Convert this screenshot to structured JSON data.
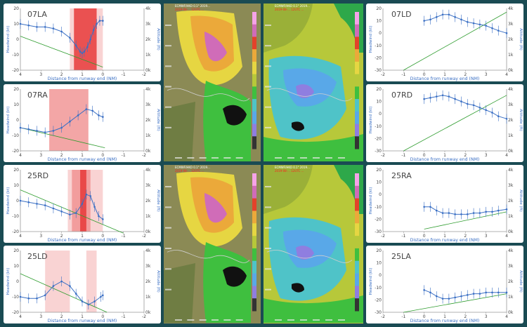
{
  "colors": {
    "background": "#1a4b53",
    "headwind": "#3a6fc4",
    "altitude": "#2e9c2e",
    "shade_light": "#f8c8c8",
    "shade_mid": "#f09090",
    "shade_dark": "#e83a3a",
    "title": "#444444"
  },
  "axis_labels": {
    "y_left": "Headwind (kt)",
    "y_right": "Altitude (ft)",
    "x": "Distance from runway end (NM)"
  },
  "maps": [
    {
      "label_top": "ECMWF/HKO  0.1°  2019...",
      "label_red": "2019-08-... 12UTC ...",
      "style": "warm"
    },
    {
      "label_top": "ECMWF/HKO  0.1°  2019...",
      "label_red": "2019-08-... 12UTC ...",
      "style": "cool"
    },
    {
      "label_top": "ECMWF/HKO  0.1°  2019...",
      "label_red": "2019-08-... 12UTC ...",
      "style": "warm"
    },
    {
      "label_top": "ECMWF/HKO  0.1°  2019...",
      "label_red": "2019-08-... 12UTC ...",
      "style": "cool"
    }
  ],
  "chart_data": [
    {
      "type": "line",
      "title": "07LA",
      "orientation": "reversed",
      "xlim": [
        4,
        -2
      ],
      "xticks": [
        "4",
        "3",
        "2",
        "1",
        "0",
        "-1",
        "-2"
      ],
      "ylim": [
        -20,
        20
      ],
      "yticks": [
        "20",
        "10",
        "0",
        "-10",
        "-20"
      ],
      "y2ticks": [
        "4k",
        "3k",
        "2k",
        "1k",
        "0k"
      ],
      "headwind": {
        "x": [
          4,
          3.6,
          3.2,
          2.8,
          2.4,
          2,
          1.6,
          1.3,
          1.1,
          1.0,
          0.9,
          0.75,
          0.6,
          0.45,
          0.3,
          0.15,
          0
        ],
        "y": [
          10,
          9,
          8,
          8,
          7,
          5,
          1,
          -4,
          -8,
          -9,
          -8,
          -5,
          0,
          6,
          10,
          12,
          12
        ]
      },
      "altitude": {
        "x": [
          4,
          0
        ],
        "y": [
          2,
          -18
        ]
      },
      "shading": [
        {
          "from": 1.6,
          "to": 0,
          "level": "light"
        },
        {
          "from": 1.4,
          "to": 0.3,
          "level": "dark"
        }
      ]
    },
    {
      "type": "line",
      "title": "07RA",
      "orientation": "reversed",
      "xlim": [
        4,
        -2
      ],
      "xticks": [
        "4",
        "3",
        "2",
        "1",
        "0",
        "-1",
        "-2"
      ],
      "ylim": [
        -20,
        20
      ],
      "yticks": [
        "20",
        "10",
        "0",
        "-10",
        "-20"
      ],
      "y2ticks": [
        "4k",
        "3k",
        "2k",
        "1k",
        "0k"
      ],
      "headwind": {
        "x": [
          4,
          3.6,
          3.2,
          2.8,
          2.4,
          2,
          1.6,
          1.2,
          0.8,
          0.5,
          0.2,
          0
        ],
        "y": [
          -5,
          -6,
          -7,
          -8,
          -7,
          -5,
          -1,
          3,
          7,
          6,
          3,
          2
        ]
      },
      "altitude": {
        "x": [
          4,
          -0.1
        ],
        "y": [
          -5,
          -18
        ]
      },
      "shading": [
        {
          "from": 2.6,
          "to": 0.7,
          "level": "mid"
        }
      ]
    },
    {
      "type": "line",
      "title": "25RD",
      "orientation": "reversed",
      "xlim": [
        4,
        -2
      ],
      "xticks": [
        "4",
        "3",
        "2",
        "1",
        "0",
        "-1",
        "-2"
      ],
      "ylim": [
        -20,
        20
      ],
      "yticks": [
        "20",
        "10",
        "0",
        "-10",
        "-20"
      ],
      "y2ticks": [
        "4k",
        "3k",
        "2k",
        "1k",
        "0k"
      ],
      "headwind": {
        "x": [
          4,
          3.6,
          3.2,
          2.8,
          2.4,
          2,
          1.6,
          1.3,
          1.0,
          0.8,
          0.6,
          0.4,
          0.2,
          0
        ],
        "y": [
          0,
          -1,
          -2,
          -3,
          -5,
          -7,
          -9,
          -8,
          -2,
          4,
          3,
          -4,
          -10,
          -12
        ]
      },
      "altitude": {
        "x": [
          4,
          -1
        ],
        "y": [
          7,
          -21
        ]
      },
      "shading": [
        {
          "from": 1.7,
          "to": 0,
          "level": "light"
        },
        {
          "from": 1.5,
          "to": 0.6,
          "level": "mid"
        },
        {
          "from": 1.1,
          "to": 0.8,
          "level": "dark"
        }
      ]
    },
    {
      "type": "line",
      "title": "25LD",
      "orientation": "reversed",
      "xlim": [
        4,
        -2
      ],
      "xticks": [
        "4",
        "3",
        "2",
        "1",
        "0",
        "-1",
        "-2"
      ],
      "ylim": [
        -20,
        20
      ],
      "yticks": [
        "20",
        "10",
        "0",
        "-10",
        "-20"
      ],
      "y2ticks": [
        "4k",
        "3k",
        "2k",
        "1k",
        "0k"
      ],
      "headwind": {
        "x": [
          4,
          3.6,
          3.2,
          2.8,
          2.4,
          2,
          1.6,
          1.3,
          1.0,
          0.7,
          0.4,
          0.1,
          0
        ],
        "y": [
          -10,
          -11,
          -11,
          -9,
          -3,
          0,
          -3,
          -8,
          -13,
          -15,
          -13,
          -10,
          -9
        ]
      },
      "altitude": {
        "x": [
          4,
          -0.2
        ],
        "y": [
          5,
          -20
        ]
      },
      "shading": [
        {
          "from": 2.8,
          "to": 1.6,
          "level": "light"
        },
        {
          "from": 0.8,
          "to": 0.3,
          "level": "light"
        }
      ]
    },
    {
      "type": "line",
      "title": "07LD",
      "orientation": "normal",
      "xlim": [
        -2,
        4
      ],
      "xticks": [
        "-2",
        "-1",
        "0",
        "1",
        "2",
        "3",
        "4"
      ],
      "ylim": [
        -30,
        20
      ],
      "yticks": [
        "20",
        "10",
        "0",
        "-10",
        "-20",
        "-30"
      ],
      "y2ticks": [
        "4k",
        "3k",
        "2k",
        "1k",
        "0k"
      ],
      "headwind": {
        "x": [
          0,
          0.3,
          0.6,
          0.9,
          1.2,
          1.5,
          1.8,
          2.1,
          2.4,
          2.7,
          3.0,
          3.3,
          3.6,
          4
        ],
        "y": [
          10,
          11,
          13,
          15,
          15,
          13,
          11,
          9,
          8,
          7,
          6,
          4,
          2,
          0
        ]
      },
      "altitude": {
        "x": [
          -1,
          4
        ],
        "y": [
          -30,
          17
        ]
      },
      "shading": []
    },
    {
      "type": "line",
      "title": "07RD",
      "orientation": "normal",
      "xlim": [
        -2,
        4
      ],
      "xticks": [
        "-2",
        "-1",
        "0",
        "1",
        "2",
        "3",
        "4"
      ],
      "ylim": [
        -30,
        20
      ],
      "yticks": [
        "20",
        "10",
        "0",
        "-10",
        "-20",
        "-30"
      ],
      "y2ticks": [
        "4k",
        "3k",
        "2k",
        "1k",
        "0k"
      ],
      "headwind": {
        "x": [
          0,
          0.3,
          0.6,
          0.9,
          1.2,
          1.5,
          1.8,
          2.1,
          2.4,
          2.7,
          3.0,
          3.3,
          3.6,
          4
        ],
        "y": [
          12,
          13,
          14,
          15,
          14,
          12,
          10,
          8,
          7,
          5,
          3,
          1,
          -2,
          -4
        ]
      },
      "altitude": {
        "x": [
          -1,
          4
        ],
        "y": [
          -30,
          15
        ]
      },
      "shading": []
    },
    {
      "type": "line",
      "title": "25RA",
      "orientation": "normal",
      "xlim": [
        -2,
        4
      ],
      "xticks": [
        "-2",
        "-1",
        "0",
        "1",
        "2",
        "3",
        "4"
      ],
      "ylim": [
        -30,
        20
      ],
      "yticks": [
        "20",
        "10",
        "0",
        "-10",
        "-20",
        "-30"
      ],
      "y2ticks": [
        "4k",
        "3k",
        "2k",
        "1k",
        "0k"
      ],
      "headwind": {
        "x": [
          0,
          0.3,
          0.6,
          0.9,
          1.2,
          1.5,
          1.8,
          2.1,
          2.4,
          2.7,
          3.0,
          3.3,
          3.6,
          4
        ],
        "y": [
          -10,
          -10,
          -13,
          -15,
          -15,
          -16,
          -16,
          -16,
          -15,
          -15,
          -14,
          -14,
          -13,
          -12
        ]
      },
      "altitude": {
        "x": [
          0,
          4
        ],
        "y": [
          -28,
          -14
        ]
      },
      "shading": []
    },
    {
      "type": "line",
      "title": "25LA",
      "orientation": "normal",
      "xlim": [
        -2,
        4
      ],
      "xticks": [
        "-2",
        "-1",
        "0",
        "1",
        "2",
        "3",
        "4"
      ],
      "ylim": [
        -30,
        20
      ],
      "yticks": [
        "20",
        "10",
        "0",
        "-10",
        "-20",
        "-30"
      ],
      "y2ticks": [
        "4k",
        "3k",
        "2k",
        "1k",
        "0k"
      ],
      "headwind": {
        "x": [
          0,
          0.3,
          0.6,
          0.9,
          1.2,
          1.5,
          1.8,
          2.1,
          2.4,
          2.7,
          3.0,
          3.3,
          3.6,
          4
        ],
        "y": [
          -12,
          -14,
          -17,
          -19,
          -19,
          -18,
          -17,
          -16,
          -15,
          -15,
          -14,
          -14,
          -14,
          -14
        ]
      },
      "altitude": {
        "x": [
          -1,
          4
        ],
        "y": [
          -30,
          -15
        ]
      },
      "shading": []
    }
  ]
}
